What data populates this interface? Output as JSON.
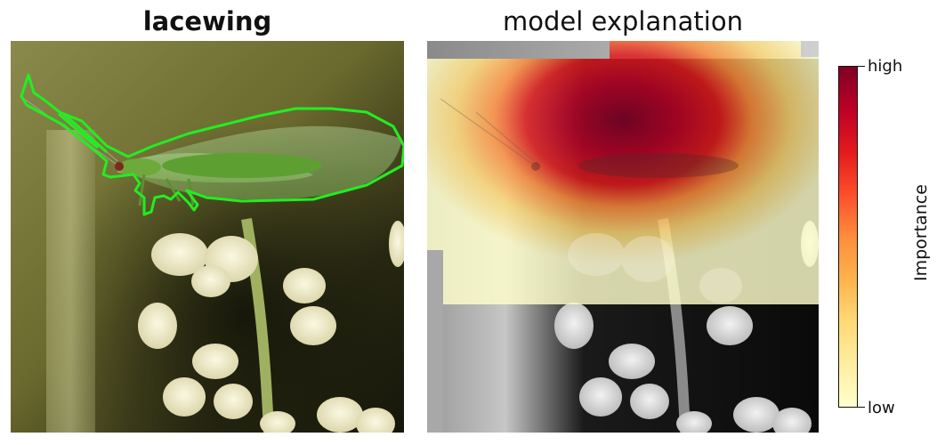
{
  "left_panel": {
    "title": "lacewing"
  },
  "right_panel": {
    "title": "model explanation"
  },
  "colorbar": {
    "label": "Importance",
    "top_label": "high",
    "bottom_label": "low",
    "colors": [
      "#ffffcc",
      "#ffeda0",
      "#fed976",
      "#feb24c",
      "#fd8d3c",
      "#fc4e2a",
      "#e31a1c",
      "#bd0026",
      "#800026"
    ]
  },
  "colors": {
    "outline": "#22ee22",
    "wing": "#8fc070",
    "body": "#4f9a2a",
    "flower": "#f4f0d0",
    "background_left": "#7a7a3a",
    "background_dark": "#16180c"
  }
}
